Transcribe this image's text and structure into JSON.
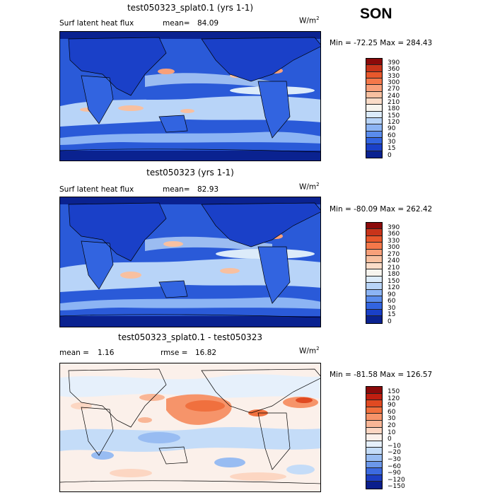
{
  "season": "SON",
  "panels": [
    {
      "title": "test050323_splat0.1 (yrs 1-1)",
      "subtitle_left": "Surf latent heat flux",
      "stat_label": "mean=",
      "stat_value": "84.09",
      "units_base": "W/m",
      "units_sup": "2",
      "minmax": "Min = -72.25 Max = 284.43",
      "levels": [
        "390",
        "360",
        "330",
        "300",
        "270",
        "240",
        "210",
        "180",
        "150",
        "120",
        "90",
        "60",
        "30",
        "15",
        "0"
      ],
      "colors": [
        "#8b0a0a",
        "#c8341a",
        "#e8582c",
        "#f4784a",
        "#f8a07a",
        "#f8c0a0",
        "#fbdcc8",
        "#f7f4ee",
        "#dcebfa",
        "#b8d4f8",
        "#8cb4f4",
        "#5a8cec",
        "#3264e0",
        "#1a40c8",
        "#0a2290"
      ]
    },
    {
      "title": "test050323 (yrs 1-1)",
      "subtitle_left": "Surf latent heat flux",
      "stat_label": "mean=",
      "stat_value": "82.93",
      "units_base": "W/m",
      "units_sup": "2",
      "minmax": "Min = -80.09 Max = 262.42",
      "levels": [
        "390",
        "360",
        "330",
        "300",
        "270",
        "240",
        "210",
        "180",
        "150",
        "120",
        "90",
        "60",
        "30",
        "15",
        "0"
      ],
      "colors": [
        "#8b0a0a",
        "#c8341a",
        "#e8582c",
        "#f4784a",
        "#f8a07a",
        "#f8c0a0",
        "#fbdcc8",
        "#f7f4ee",
        "#dcebfa",
        "#b8d4f8",
        "#8cb4f4",
        "#5a8cec",
        "#3264e0",
        "#1a40c8",
        "#0a2290"
      ]
    },
    {
      "title": "test050323_splat0.1 - test050323",
      "stat_label": "mean =",
      "stat_value": "1.16",
      "rmse_label": "rmse =",
      "rmse_value": "16.82",
      "units_base": "W/m",
      "units_sup": "2",
      "minmax": "Min = -81.58 Max = 126.57",
      "levels": [
        "150",
        "120",
        "90",
        "60",
        "30",
        "20",
        "10",
        "0",
        "−10",
        "−20",
        "−30",
        "−60",
        "−90",
        "−120",
        "−150"
      ],
      "colors": [
        "#8b0a0a",
        "#c01e10",
        "#e04a22",
        "#f0703e",
        "#f6946a",
        "#f9b696",
        "#fcd6c2",
        "#fbf0ea",
        "#e6f0fb",
        "#c4dcf8",
        "#98bcf2",
        "#6c98ea",
        "#3c6ae0",
        "#1c3ec4",
        "#0a1e8c"
      ]
    }
  ]
}
